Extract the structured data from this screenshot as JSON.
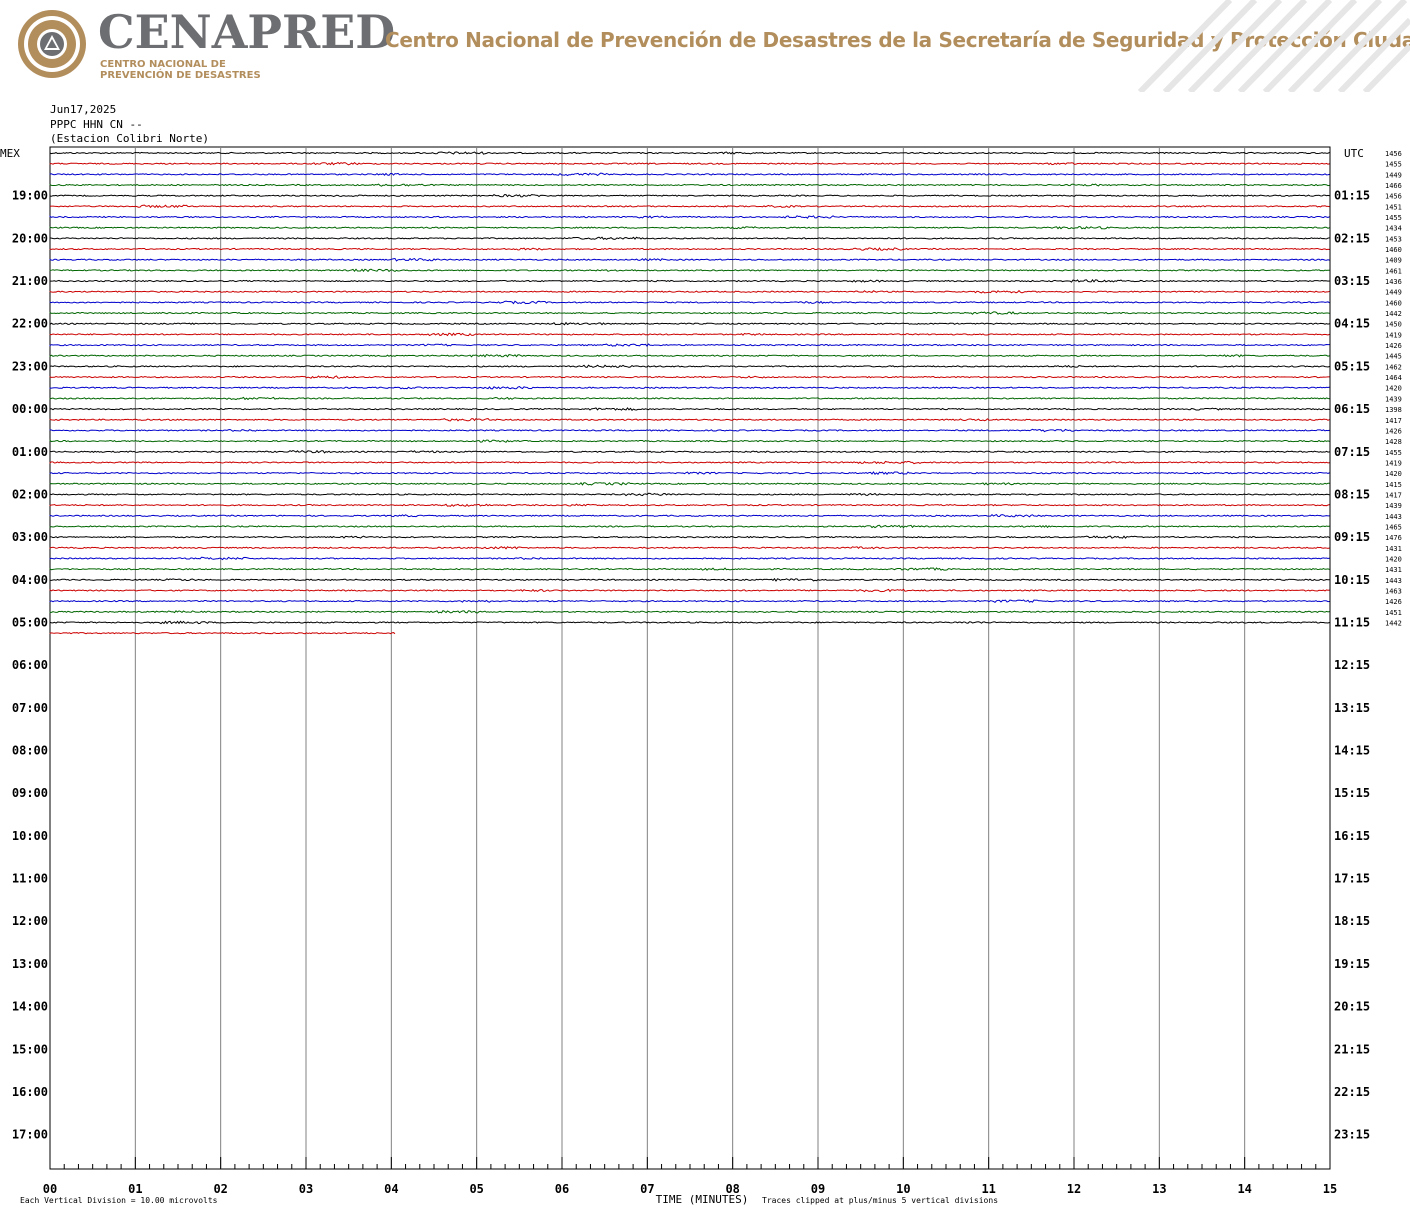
{
  "header": {
    "logo_text": "CENAPRED",
    "logo_sub_1": "CENTRO NACIONAL DE",
    "logo_sub_2": "PREVENCIÓN DE DESASTRES",
    "title": "Centro Nacional de Prevención de Desastres de la Secretaría de Seguridad y Protección Ciudadana",
    "brand_color": "#b38e5d",
    "logo_gray": "#6d6e71"
  },
  "meta": {
    "date": "Jun17,2025",
    "channel": "PPPC HHN CN --",
    "station": "(Estacion Colibri Norte)"
  },
  "chart_data": {
    "type": "line",
    "description_kind": "helicorder seismogram",
    "left_axis_label": "MEX",
    "right_axis_label": "UTC",
    "left_hour_labels": [
      "19:00",
      "20:00",
      "21:00",
      "22:00",
      "23:00",
      "00:00",
      "01:00",
      "02:00",
      "03:00",
      "04:00",
      "05:00",
      "06:00",
      "07:00",
      "08:00",
      "09:00",
      "10:00",
      "11:00",
      "12:00",
      "13:00",
      "14:00",
      "15:00",
      "16:00",
      "17:00"
    ],
    "right_hour_labels": [
      "01:15",
      "02:15",
      "03:15",
      "04:15",
      "05:15",
      "06:15",
      "07:15",
      "08:15",
      "09:15",
      "10:15",
      "11:15",
      "12:15",
      "13:15",
      "14:15",
      "15:15",
      "16:15",
      "17:15",
      "18:15",
      "19:15",
      "20:15",
      "21:15",
      "22:15",
      "23:15"
    ],
    "x_ticks": [
      "00",
      "01",
      "02",
      "03",
      "04",
      "05",
      "06",
      "07",
      "08",
      "09",
      "10",
      "11",
      "12",
      "13",
      "14",
      "15"
    ],
    "xlabel": "TIME (MINUTES)",
    "xlim": [
      0,
      15
    ],
    "trace_colors": [
      "#000000",
      "#cc0000",
      "#0000cc",
      "#006600"
    ],
    "traces_per_hour": 4,
    "completed_traces": 45,
    "final_trace_minutes": 4.05,
    "trace_offset_values": [
      "1456",
      "1455",
      "1449",
      "1466",
      "1456",
      "1451",
      "1455",
      "1434",
      "1453",
      "1460",
      "1409",
      "1461",
      "1436",
      "1449",
      "1460",
      "1442",
      "1450",
      "1419",
      "1426",
      "1445",
      "1462",
      "1464",
      "1420",
      "1439",
      "1398",
      "1417",
      "1426",
      "1428",
      "1455",
      "1419",
      "1420",
      "1415",
      "1417",
      "1439",
      "1443",
      "1465",
      "1476",
      "1431",
      "1420",
      "1431",
      "1443",
      "1463",
      "1426",
      "1451",
      "1442"
    ],
    "footer_left": "Each Vertical Division =   10.00 microvolts",
    "footer_right": "Traces clipped at plus/minus 5 vertical divisions",
    "grid": true
  }
}
